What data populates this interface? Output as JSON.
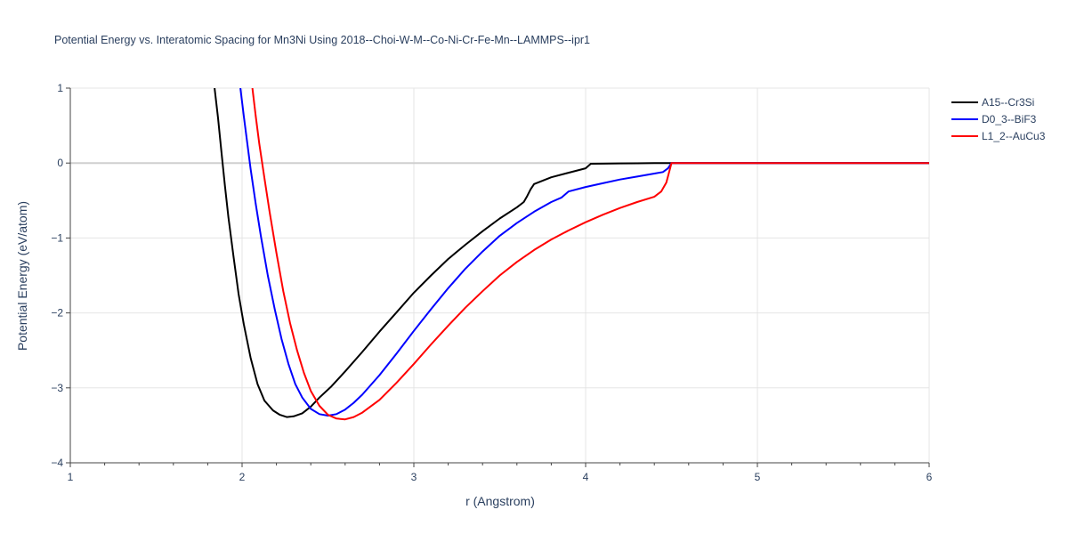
{
  "chart_data": {
    "type": "line",
    "title": "Potential Energy vs. Interatomic Spacing for Mn3Ni Using 2018--Choi-W-M--Co-Ni-Cr-Fe-Mn--LAMMPS--ipr1",
    "xlabel": "r (Angstrom)",
    "ylabel": "Potential Energy (eV/atom)",
    "xlim": [
      1,
      6
    ],
    "ylim": [
      -4,
      1
    ],
    "xticks": [
      1,
      2,
      3,
      4,
      5,
      6
    ],
    "yticks": [
      1,
      0,
      -1,
      -2,
      -3,
      -4
    ],
    "grid": true,
    "legend_position": "top-right",
    "series": [
      {
        "name": "A15--Cr3Si",
        "color": "#000000",
        "x": [
          1.84,
          1.86,
          1.88,
          1.9,
          1.92,
          1.95,
          1.98,
          2.01,
          2.05,
          2.09,
          2.13,
          2.18,
          2.22,
          2.26,
          2.3,
          2.35,
          2.4,
          2.45,
          2.52,
          2.6,
          2.7,
          2.8,
          2.9,
          3.0,
          3.1,
          3.2,
          3.3,
          3.4,
          3.5,
          3.6,
          3.64,
          3.66,
          3.68,
          3.7,
          3.8,
          3.9,
          4.0,
          4.03,
          4.1,
          4.2,
          4.3,
          4.4,
          4.5,
          5.0,
          5.5,
          6.0
        ],
        "y": [
          1.0,
          0.6,
          0.15,
          -0.3,
          -0.72,
          -1.25,
          -1.75,
          -2.15,
          -2.6,
          -2.95,
          -3.17,
          -3.3,
          -3.36,
          -3.39,
          -3.38,
          -3.34,
          -3.25,
          -3.13,
          -2.98,
          -2.78,
          -2.52,
          -2.25,
          -1.99,
          -1.73,
          -1.5,
          -1.28,
          -1.09,
          -0.91,
          -0.74,
          -0.59,
          -0.52,
          -0.44,
          -0.35,
          -0.28,
          -0.19,
          -0.13,
          -0.07,
          -0.01,
          -0.008,
          -0.005,
          -0.003,
          -0.001,
          0.0,
          0.0,
          0.0,
          0.0
        ]
      },
      {
        "name": "D0_3--BiF3",
        "color": "#0000ff",
        "x": [
          1.99,
          2.01,
          2.03,
          2.05,
          2.08,
          2.11,
          2.15,
          2.19,
          2.23,
          2.27,
          2.31,
          2.35,
          2.4,
          2.45,
          2.5,
          2.55,
          2.6,
          2.65,
          2.7,
          2.8,
          2.9,
          3.0,
          3.1,
          3.2,
          3.3,
          3.4,
          3.5,
          3.6,
          3.7,
          3.8,
          3.86,
          3.88,
          3.9,
          4.0,
          4.1,
          4.2,
          4.3,
          4.4,
          4.45,
          4.48,
          4.5,
          5.0,
          5.5,
          6.0
        ],
        "y": [
          1.0,
          0.63,
          0.27,
          -0.08,
          -0.55,
          -0.98,
          -1.5,
          -1.95,
          -2.35,
          -2.68,
          -2.95,
          -3.13,
          -3.28,
          -3.35,
          -3.37,
          -3.35,
          -3.29,
          -3.2,
          -3.09,
          -2.83,
          -2.54,
          -2.24,
          -1.95,
          -1.67,
          -1.41,
          -1.18,
          -0.97,
          -0.8,
          -0.65,
          -0.52,
          -0.46,
          -0.42,
          -0.38,
          -0.32,
          -0.27,
          -0.22,
          -0.18,
          -0.14,
          -0.12,
          -0.07,
          0.0,
          0.0,
          0.0,
          0.0
        ]
      },
      {
        "name": "L1_2--AuCu3",
        "color": "#ff0000",
        "x": [
          2.06,
          2.08,
          2.1,
          2.13,
          2.16,
          2.2,
          2.24,
          2.28,
          2.32,
          2.36,
          2.4,
          2.45,
          2.5,
          2.55,
          2.6,
          2.65,
          2.7,
          2.8,
          2.9,
          3.0,
          3.1,
          3.2,
          3.3,
          3.4,
          3.5,
          3.6,
          3.7,
          3.8,
          3.9,
          4.0,
          4.1,
          4.2,
          4.3,
          4.4,
          4.44,
          4.47,
          4.5,
          5.0,
          5.5,
          6.0
        ],
        "y": [
          1.0,
          0.62,
          0.26,
          -0.2,
          -0.65,
          -1.2,
          -1.71,
          -2.14,
          -2.5,
          -2.8,
          -3.04,
          -3.24,
          -3.36,
          -3.41,
          -3.42,
          -3.39,
          -3.33,
          -3.16,
          -2.93,
          -2.68,
          -2.42,
          -2.17,
          -1.93,
          -1.71,
          -1.5,
          -1.32,
          -1.16,
          -1.02,
          -0.9,
          -0.79,
          -0.69,
          -0.6,
          -0.52,
          -0.45,
          -0.38,
          -0.26,
          0.0,
          0.0,
          0.0,
          0.0
        ]
      }
    ]
  }
}
